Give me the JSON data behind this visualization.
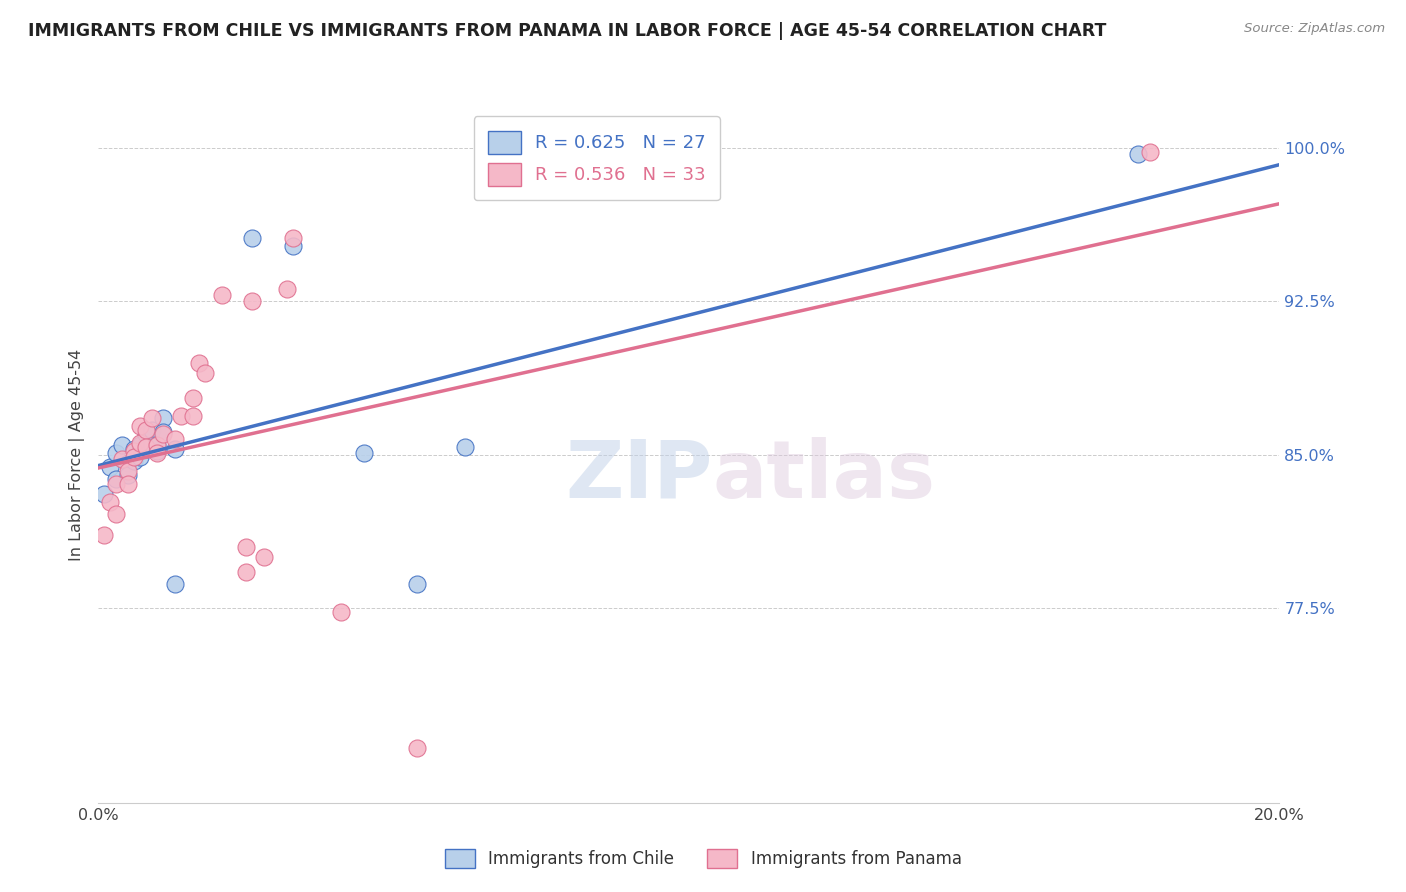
{
  "title": "IMMIGRANTS FROM CHILE VS IMMIGRANTS FROM PANAMA IN LABOR FORCE | AGE 45-54 CORRELATION CHART",
  "source": "Source: ZipAtlas.com",
  "ylabel": "In Labor Force | Age 45-54",
  "xlim": [
    0.0,
    0.2
  ],
  "ylim": [
    0.68,
    1.02
  ],
  "yticks": [
    0.775,
    0.85,
    0.925,
    1.0
  ],
  "ytick_labels": [
    "77.5%",
    "85.0%",
    "92.5%",
    "100.0%"
  ],
  "xticks": [
    0.0,
    0.05,
    0.1,
    0.15,
    0.2
  ],
  "xtick_labels": [
    "0.0%",
    "",
    "",
    "",
    "20.0%"
  ],
  "chile_color": "#b8d0ea",
  "panama_color": "#f5b8c8",
  "chile_line_color": "#4472c4",
  "panama_line_color": "#e07090",
  "legend_chile_R": "0.625",
  "legend_chile_N": "27",
  "legend_panama_R": "0.536",
  "legend_panama_N": "33",
  "watermark_zip": "ZIP",
  "watermark_atlas": "atlas",
  "chile_x": [
    0.001,
    0.002,
    0.003,
    0.003,
    0.004,
    0.005,
    0.005,
    0.006,
    0.006,
    0.007,
    0.007,
    0.008,
    0.008,
    0.009,
    0.009,
    0.01,
    0.01,
    0.011,
    0.011,
    0.013,
    0.013,
    0.026,
    0.033,
    0.045,
    0.054,
    0.062,
    0.176
  ],
  "chile_y": [
    0.831,
    0.844,
    0.851,
    0.838,
    0.855,
    0.846,
    0.84,
    0.853,
    0.847,
    0.855,
    0.849,
    0.86,
    0.853,
    0.862,
    0.855,
    0.852,
    0.855,
    0.868,
    0.861,
    0.853,
    0.787,
    0.956,
    0.952,
    0.851,
    0.787,
    0.854,
    0.997
  ],
  "panama_x": [
    0.001,
    0.002,
    0.003,
    0.003,
    0.004,
    0.005,
    0.005,
    0.006,
    0.006,
    0.007,
    0.007,
    0.008,
    0.008,
    0.009,
    0.01,
    0.01,
    0.011,
    0.013,
    0.014,
    0.016,
    0.016,
    0.017,
    0.018,
    0.021,
    0.025,
    0.025,
    0.026,
    0.028,
    0.032,
    0.033,
    0.041,
    0.054,
    0.178
  ],
  "panama_y": [
    0.811,
    0.827,
    0.836,
    0.821,
    0.848,
    0.842,
    0.836,
    0.852,
    0.849,
    0.864,
    0.856,
    0.862,
    0.854,
    0.868,
    0.855,
    0.851,
    0.86,
    0.858,
    0.869,
    0.878,
    0.869,
    0.895,
    0.89,
    0.928,
    0.805,
    0.793,
    0.925,
    0.8,
    0.931,
    0.956,
    0.773,
    0.707,
    0.998
  ]
}
